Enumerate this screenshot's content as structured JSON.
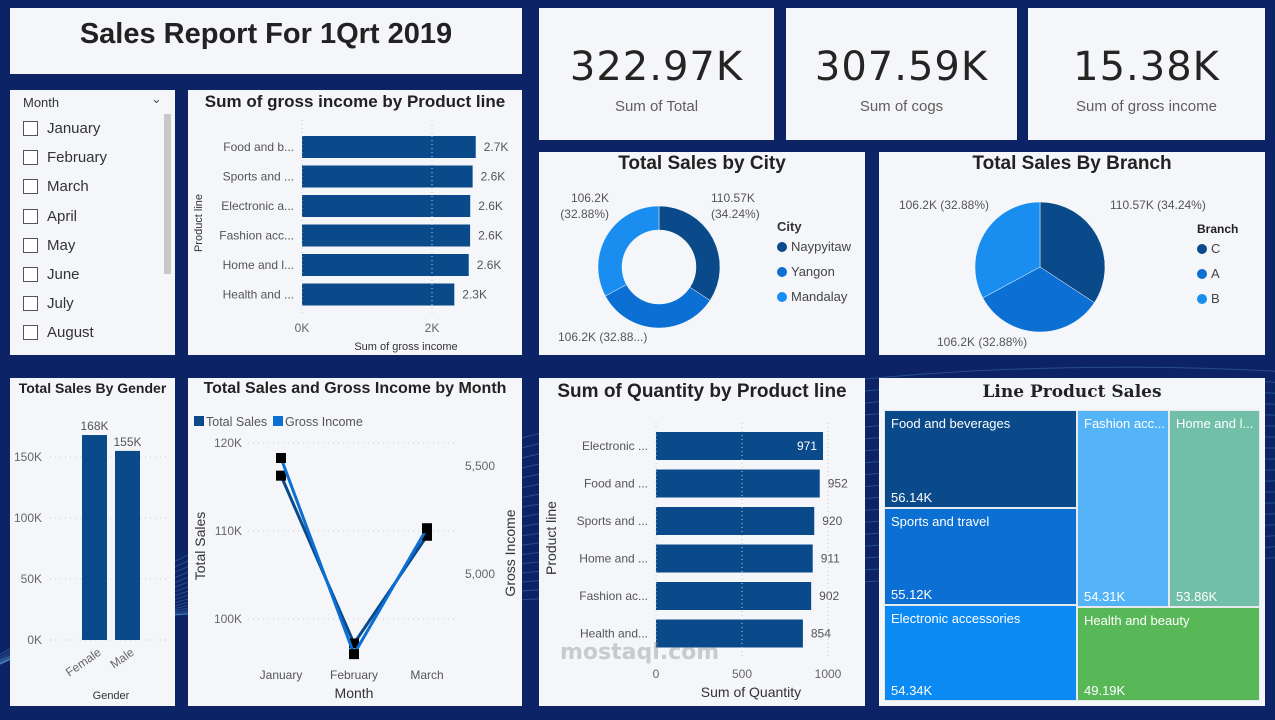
{
  "title": "Sales Report For 1Qrt 2019",
  "kpis": [
    {
      "value": "322.97K",
      "label": "Sum of Total"
    },
    {
      "value": "307.59K",
      "label": "Sum of cogs"
    },
    {
      "value": "15.38K",
      "label": "Sum of gross income"
    }
  ],
  "slicer": {
    "header": "Month",
    "items": [
      "January",
      "February",
      "March",
      "April",
      "May",
      "June",
      "July",
      "August"
    ]
  },
  "colors": {
    "dark": "#0a4a8a",
    "mid": "#0b6fd4",
    "light": "#1a8ef0",
    "background": "#0c2466",
    "panel": "#f4f6f9"
  },
  "watermark": "mostaql.com",
  "chart_data": [
    {
      "id": "gross_income_by_product",
      "type": "bar",
      "orientation": "horizontal",
      "title": "Sum of gross income by Product line",
      "xlabel": "Sum of gross income",
      "ylabel": "Product line",
      "categories": [
        "Food and b...",
        "Sports and ...",
        "Electronic a...",
        "Fashion acc...",
        "Home and l...",
        "Health and ..."
      ],
      "values": [
        2673,
        2625,
        2588,
        2586,
        2565,
        2343
      ],
      "data_labels": [
        "2.7K",
        "2.6K",
        "2.6K",
        "2.6K",
        "2.6K",
        "2.3K"
      ],
      "xticks": [
        "0K",
        "2K"
      ],
      "xlim": [
        0,
        2700
      ]
    },
    {
      "id": "sales_by_city",
      "type": "pie",
      "donut": true,
      "title": "Total Sales by City",
      "legend_title": "City",
      "categories": [
        "Naypyitaw",
        "Yangon",
        "Mandalay"
      ],
      "values": [
        110.57,
        106.2,
        106.2
      ],
      "data_labels": [
        "110.57K (34.24%)",
        "106.2K (32.88...)",
        "106.2K (32.88%)"
      ],
      "legend": "right"
    },
    {
      "id": "sales_by_branch",
      "type": "pie",
      "title": "Total Sales By Branch",
      "legend_title": "Branch",
      "categories": [
        "C",
        "A",
        "B"
      ],
      "values": [
        110.57,
        106.2,
        106.2
      ],
      "data_labels": [
        "110.57K (34.24%)",
        "106.2K (32.88%)",
        "106.2K (32.88%)"
      ],
      "legend": "right"
    },
    {
      "id": "sales_by_gender",
      "type": "bar",
      "title": "Total Sales By Gender",
      "xlabel": "Gender",
      "categories": [
        "Female",
        "Male"
      ],
      "values": [
        168,
        155
      ],
      "data_labels": [
        "168K",
        "155K"
      ],
      "yticks": [
        "0K",
        "50K",
        "100K",
        "150K"
      ],
      "ylim": [
        0,
        150
      ],
      "grid": true
    },
    {
      "id": "sales_gi_by_month",
      "type": "line",
      "title": "Total Sales and Gross Income by Month",
      "xlabel": "Month",
      "ylabel": "Total Sales",
      "y2label": "Gross Income",
      "categories": [
        "January",
        "February",
        "March"
      ],
      "series": [
        {
          "name": "Total Sales",
          "axis": "left",
          "values": [
            116.29,
            97.22,
            109.46
          ]
        },
        {
          "name": "Gross Income",
          "axis": "right",
          "values": [
            5537,
            4629,
            5212
          ]
        }
      ],
      "yticks": [
        "100K",
        "110K",
        "120K"
      ],
      "y2ticks": [
        "5,000",
        "5,500"
      ],
      "legend": "top-left",
      "grid": true
    },
    {
      "id": "quantity_by_product",
      "type": "bar",
      "orientation": "horizontal",
      "title": "Sum of Quantity by Product line",
      "xlabel": "Sum of Quantity",
      "ylabel": "Product line",
      "categories": [
        "Electronic ...",
        "Food and ...",
        "Sports and ...",
        "Home and ...",
        "Fashion ac...",
        "Health and..."
      ],
      "values": [
        971,
        952,
        920,
        911,
        902,
        854
      ],
      "xticks": [
        "0",
        "500",
        "1000"
      ],
      "xlim": [
        0,
        1000
      ]
    },
    {
      "id": "line_product_sales",
      "type": "treemap",
      "title": "Line Product Sales",
      "categories": [
        "Food and beverages",
        "Sports and travel",
        "Electronic accessories",
        "Fashion acc...",
        "Home and l...",
        "Health and beauty"
      ],
      "values": [
        "56.14K",
        "55.12K",
        "54.34K",
        "54.31K",
        "53.86K",
        "49.19K"
      ],
      "colors": [
        "#0a4a8a",
        "#0b6fd4",
        "#0a8af2",
        "#55b3f8",
        "#71bfa7",
        "#58b858"
      ]
    }
  ]
}
